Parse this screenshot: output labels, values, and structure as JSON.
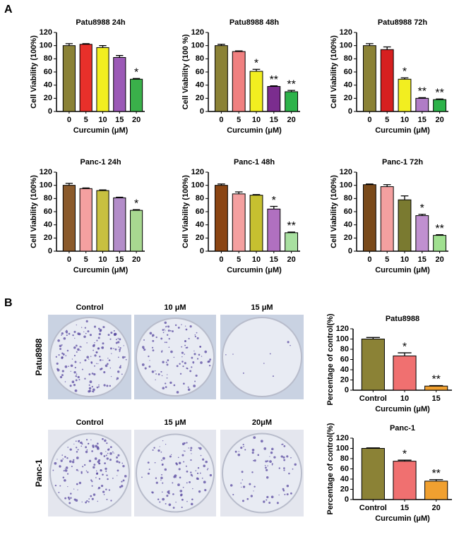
{
  "figure": {
    "panel_labels": [
      "A",
      "B"
    ],
    "colony_rows": [
      {
        "label": "Patu8988",
        "columns": [
          "Control",
          "10 μM",
          "15 μM"
        ]
      },
      {
        "label": "Panc-1",
        "columns": [
          "Control",
          "15 μM",
          "20μM"
        ]
      }
    ]
  },
  "chart_data": [
    {
      "type": "bar",
      "title": "Patu8988 24h",
      "y_label": "Cell Viability (100%)",
      "x_label": "Curcumin (μM)",
      "categories": [
        "0",
        "5",
        "10",
        "15",
        "20"
      ],
      "values": [
        100,
        102,
        97,
        82,
        49
      ],
      "errors": [
        3,
        1,
        3,
        3,
        1
      ],
      "colors": [
        "#8b8236",
        "#e8302a",
        "#f2ee20",
        "#9b59b6",
        "#3ab04a"
      ],
      "annotations": [
        null,
        null,
        null,
        null,
        "*"
      ],
      "ylim": [
        0,
        120
      ],
      "yticks": [
        0,
        20,
        40,
        60,
        80,
        100,
        120
      ]
    },
    {
      "type": "bar",
      "title": "Patu8988 48h",
      "y_label": "Cell Viability (100 %)",
      "x_label": "Curcumin (μM)",
      "categories": [
        "0",
        "5",
        "10",
        "15",
        "20"
      ],
      "values": [
        100,
        91,
        61,
        38,
        30
      ],
      "errors": [
        2,
        1,
        3,
        1,
        2
      ],
      "colors": [
        "#8b8236",
        "#f08080",
        "#f2ee20",
        "#7b2d8e",
        "#2db34a"
      ],
      "annotations": [
        null,
        null,
        "*",
        "**",
        "**"
      ],
      "ylim": [
        0,
        120
      ],
      "yticks": [
        0,
        20,
        40,
        60,
        80,
        100,
        120
      ]
    },
    {
      "type": "bar",
      "title": "Patu8988 72h",
      "y_label": "Cell Viability (100%)",
      "x_label": "Curcumin (μM)",
      "categories": [
        "0",
        "5",
        "10",
        "15",
        "20"
      ],
      "values": [
        100,
        94,
        49,
        20,
        18
      ],
      "errors": [
        3,
        4,
        2,
        1,
        1
      ],
      "colors": [
        "#8b8236",
        "#d62020",
        "#f2ee20",
        "#b07cc6",
        "#2db34a"
      ],
      "annotations": [
        null,
        null,
        "*",
        "**",
        "**"
      ],
      "ylim": [
        0,
        120
      ],
      "yticks": [
        0,
        20,
        40,
        60,
        80,
        100,
        120
      ]
    },
    {
      "type": "bar",
      "title": "Panc-1 24h",
      "y_label": "Cell Viability (100%)",
      "x_label": "Curcumin (μM)",
      "categories": [
        "0",
        "5",
        "10",
        "15",
        "20"
      ],
      "values": [
        100,
        95,
        92,
        81,
        62
      ],
      "errors": [
        3,
        1,
        1,
        1,
        1
      ],
      "colors": [
        "#8b5a2b",
        "#f4a0a0",
        "#c8c040",
        "#b38dc9",
        "#a8d890"
      ],
      "annotations": [
        null,
        null,
        null,
        null,
        "*"
      ],
      "ylim": [
        0,
        120
      ],
      "yticks": [
        0,
        20,
        40,
        60,
        80,
        100,
        120
      ]
    },
    {
      "type": "bar",
      "title": "Panc-1 48h",
      "y_label": "Cell Viability (100%)",
      "x_label": "Curcumin (μM)",
      "categories": [
        "0",
        "5",
        "10",
        "15",
        "20"
      ],
      "values": [
        100,
        87,
        85,
        64,
        28
      ],
      "errors": [
        2,
        3,
        1,
        4,
        1
      ],
      "colors": [
        "#8b4513",
        "#f4a0a0",
        "#c6c030",
        "#b070c0",
        "#a8e0a0"
      ],
      "annotations": [
        null,
        null,
        null,
        "*",
        "**"
      ],
      "ylim": [
        0,
        120
      ],
      "yticks": [
        0,
        20,
        40,
        60,
        80,
        100,
        120
      ]
    },
    {
      "type": "bar",
      "title": "Panc-1 72h",
      "y_label": "Cell Viability (100%)",
      "x_label": "Curcumin (μM)",
      "categories": [
        "0",
        "5",
        "10",
        "15",
        "20"
      ],
      "values": [
        101,
        98,
        78,
        54,
        24
      ],
      "errors": [
        1,
        3,
        6,
        2,
        1
      ],
      "colors": [
        "#7a4a1a",
        "#f4a0a0",
        "#7a7a30",
        "#c090d0",
        "#a0e090"
      ],
      "annotations": [
        null,
        null,
        null,
        "*",
        "**"
      ],
      "ylim": [
        0,
        120
      ],
      "yticks": [
        0,
        20,
        40,
        60,
        80,
        100,
        120
      ]
    },
    {
      "type": "bar",
      "title": "Patu8988",
      "y_label": "Percentage of control(%)",
      "x_label": "Curcumin (μM)",
      "categories": [
        "Control",
        "10",
        "15"
      ],
      "values": [
        100,
        67,
        8
      ],
      "errors": [
        3,
        6,
        1
      ],
      "colors": [
        "#8b8236",
        "#f07070",
        "#f0a030"
      ],
      "annotations": [
        null,
        "*",
        "**"
      ],
      "ylim": [
        0,
        120
      ],
      "yticks": [
        0,
        20,
        40,
        60,
        80,
        100,
        120
      ]
    },
    {
      "type": "bar",
      "title": "Panc-1",
      "y_label": "Percentage of control(%)",
      "x_label": "Curcumin (μM)",
      "categories": [
        "Control",
        "15",
        "20"
      ],
      "values": [
        100,
        75,
        36
      ],
      "errors": [
        1,
        2,
        3
      ],
      "colors": [
        "#8b8236",
        "#f07070",
        "#f0a030"
      ],
      "annotations": [
        null,
        "*",
        "**"
      ],
      "ylim": [
        0,
        120
      ],
      "yticks": [
        0,
        20,
        40,
        60,
        80,
        100,
        120
      ]
    }
  ]
}
